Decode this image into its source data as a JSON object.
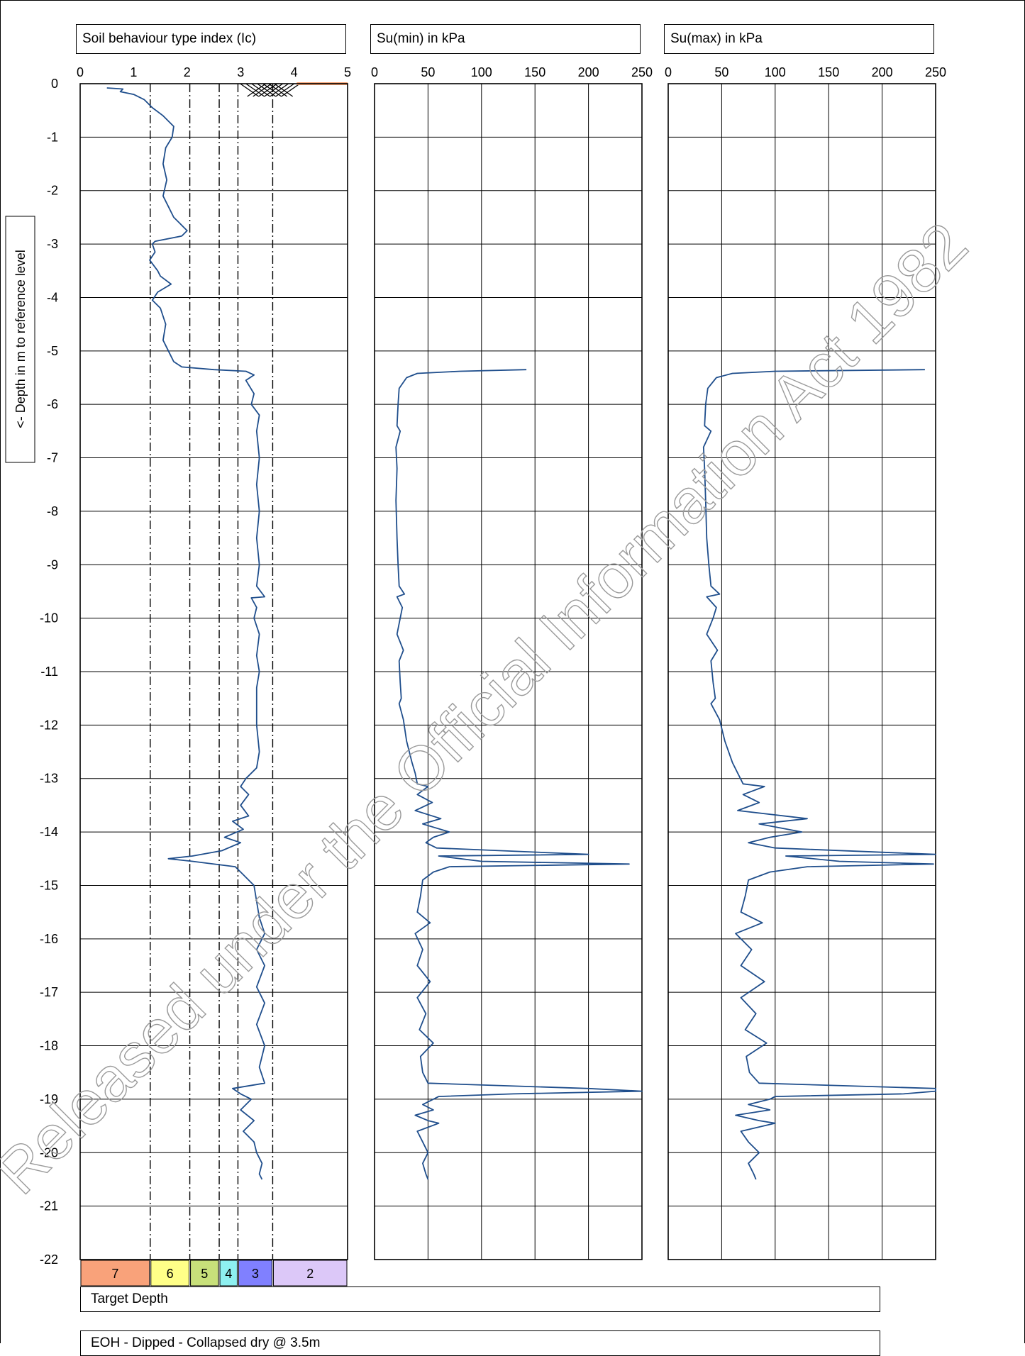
{
  "chart_data": [
    {
      "type": "line",
      "title": "Soil behaviour type index (Ic)",
      "ylabel": "<- Depth in m to reference level",
      "xlim": [
        0,
        5
      ],
      "ylim": [
        -22,
        0
      ],
      "x_ticks": [
        "0",
        "1",
        "2",
        "3",
        "4",
        "5"
      ],
      "y_ticks": [
        "0",
        "-1",
        "-2",
        "-3",
        "-4",
        "-5",
        "-6",
        "-7",
        "-8",
        "-9",
        "-10",
        "-11",
        "-12",
        "-13",
        "-14",
        "-15",
        "-16",
        "-17",
        "-18",
        "-19",
        "-20",
        "-21",
        "-22"
      ],
      "zone_boundaries": [
        1.31,
        2.05,
        2.6,
        2.95,
        3.6
      ],
      "zones": [
        {
          "label": "7",
          "from": 0,
          "to": 1.31,
          "color": "#f9a27a"
        },
        {
          "label": "6",
          "from": 1.31,
          "to": 2.05,
          "color": "#ffff88"
        },
        {
          "label": "5",
          "from": 2.05,
          "to": 2.6,
          "color": "#c8e07a"
        },
        {
          "label": "4",
          "from": 2.6,
          "to": 2.95,
          "color": "#8ef0f0"
        },
        {
          "label": "3",
          "from": 2.95,
          "to": 3.6,
          "color": "#8080ff"
        },
        {
          "label": "2",
          "from": 3.6,
          "to": 5,
          "color": "#dcc8f8"
        }
      ],
      "series": [
        {
          "color": "#1f4e8c",
          "points": [
            [
              0.5,
              -0.08
            ],
            [
              0.8,
              -0.1
            ],
            [
              0.75,
              -0.15
            ],
            [
              1.0,
              -0.2
            ],
            [
              1.2,
              -0.3
            ],
            [
              1.35,
              -0.45
            ],
            [
              1.55,
              -0.6
            ],
            [
              1.75,
              -0.8
            ],
            [
              1.72,
              -1.0
            ],
            [
              1.6,
              -1.2
            ],
            [
              1.55,
              -1.5
            ],
            [
              1.62,
              -1.8
            ],
            [
              1.55,
              -2.1
            ],
            [
              1.65,
              -2.3
            ],
            [
              1.75,
              -2.5
            ],
            [
              1.85,
              -2.6
            ],
            [
              2.0,
              -2.75
            ],
            [
              1.9,
              -2.85
            ],
            [
              1.4,
              -2.95
            ],
            [
              1.35,
              -3.0
            ],
            [
              1.4,
              -3.15
            ],
            [
              1.3,
              -3.3
            ],
            [
              1.45,
              -3.5
            ],
            [
              1.5,
              -3.6
            ],
            [
              1.7,
              -3.75
            ],
            [
              1.45,
              -3.9
            ],
            [
              1.35,
              -4.05
            ],
            [
              1.5,
              -4.2
            ],
            [
              1.6,
              -4.5
            ],
            [
              1.55,
              -4.8
            ],
            [
              1.65,
              -5.0
            ],
            [
              1.75,
              -5.2
            ],
            [
              1.9,
              -5.3
            ],
            [
              2.5,
              -5.35
            ],
            [
              3.1,
              -5.38
            ],
            [
              3.25,
              -5.45
            ],
            [
              3.1,
              -5.55
            ],
            [
              3.25,
              -5.8
            ],
            [
              3.2,
              -6.0
            ],
            [
              3.35,
              -6.2
            ],
            [
              3.3,
              -6.5
            ],
            [
              3.35,
              -7.0
            ],
            [
              3.3,
              -7.5
            ],
            [
              3.35,
              -8.0
            ],
            [
              3.3,
              -8.5
            ],
            [
              3.35,
              -9.0
            ],
            [
              3.3,
              -9.4
            ],
            [
              3.45,
              -9.6
            ],
            [
              3.2,
              -9.62
            ],
            [
              3.3,
              -9.8
            ],
            [
              3.25,
              -10.0
            ],
            [
              3.35,
              -10.3
            ],
            [
              3.3,
              -10.7
            ],
            [
              3.35,
              -11.0
            ],
            [
              3.3,
              -11.3
            ],
            [
              3.3,
              -11.6
            ],
            [
              3.3,
              -12.0
            ],
            [
              3.35,
              -12.5
            ],
            [
              3.3,
              -12.8
            ],
            [
              3.1,
              -13.0
            ],
            [
              3.0,
              -13.15
            ],
            [
              3.15,
              -13.3
            ],
            [
              3.0,
              -13.5
            ],
            [
              3.15,
              -13.7
            ],
            [
              2.85,
              -13.8
            ],
            [
              3.05,
              -13.95
            ],
            [
              2.7,
              -14.1
            ],
            [
              3.0,
              -14.2
            ],
            [
              2.65,
              -14.35
            ],
            [
              2.1,
              -14.45
            ],
            [
              1.65,
              -14.5
            ],
            [
              2.1,
              -14.55
            ],
            [
              2.9,
              -14.65
            ],
            [
              3.05,
              -14.8
            ],
            [
              3.25,
              -15.0
            ],
            [
              3.3,
              -15.3
            ],
            [
              3.35,
              -15.6
            ],
            [
              3.45,
              -15.9
            ],
            [
              3.3,
              -16.2
            ],
            [
              3.45,
              -16.5
            ],
            [
              3.3,
              -16.9
            ],
            [
              3.45,
              -17.2
            ],
            [
              3.3,
              -17.6
            ],
            [
              3.45,
              -18.0
            ],
            [
              3.35,
              -18.4
            ],
            [
              3.45,
              -18.7
            ],
            [
              2.85,
              -18.8
            ],
            [
              3.0,
              -18.9
            ],
            [
              3.2,
              -19.0
            ],
            [
              3.0,
              -19.2
            ],
            [
              3.25,
              -19.4
            ],
            [
              3.05,
              -19.6
            ],
            [
              3.25,
              -19.8
            ],
            [
              3.3,
              -20.0
            ],
            [
              3.4,
              -20.2
            ],
            [
              3.35,
              -20.4
            ],
            [
              3.4,
              -20.5
            ]
          ]
        }
      ]
    },
    {
      "type": "line",
      "title": "Su(min) in kPa",
      "xlim": [
        0,
        250
      ],
      "ylim": [
        -22,
        0
      ],
      "x_ticks": [
        "0",
        "50",
        "100",
        "150",
        "200",
        "250"
      ],
      "series": [
        {
          "color": "#1f4e8c",
          "points": [
            [
              142,
              -5.35
            ],
            [
              80,
              -5.38
            ],
            [
              40,
              -5.42
            ],
            [
              30,
              -5.5
            ],
            [
              23,
              -5.7
            ],
            [
              22,
              -6.0
            ],
            [
              21,
              -6.4
            ],
            [
              24,
              -6.5
            ],
            [
              20,
              -6.8
            ],
            [
              21,
              -7.2
            ],
            [
              20,
              -7.8
            ],
            [
              21,
              -8.5
            ],
            [
              22,
              -9.0
            ],
            [
              23,
              -9.4
            ],
            [
              28,
              -9.55
            ],
            [
              21,
              -9.6
            ],
            [
              26,
              -9.8
            ],
            [
              24,
              -10.0
            ],
            [
              21,
              -10.3
            ],
            [
              27,
              -10.6
            ],
            [
              23,
              -10.8
            ],
            [
              24,
              -11.2
            ],
            [
              25,
              -11.5
            ],
            [
              23,
              -11.6
            ],
            [
              27,
              -11.9
            ],
            [
              30,
              -12.3
            ],
            [
              35,
              -12.7
            ],
            [
              38,
              -12.9
            ],
            [
              40,
              -13.1
            ],
            [
              50,
              -13.15
            ],
            [
              40,
              -13.3
            ],
            [
              54,
              -13.45
            ],
            [
              38,
              -13.6
            ],
            [
              62,
              -13.75
            ],
            [
              45,
              -13.85
            ],
            [
              70,
              -14.0
            ],
            [
              55,
              -14.1
            ],
            [
              48,
              -14.2
            ],
            [
              58,
              -14.3
            ],
            [
              200,
              -14.42
            ],
            [
              60,
              -14.45
            ],
            [
              100,
              -14.55
            ],
            [
              238,
              -14.6
            ],
            [
              70,
              -14.65
            ],
            [
              55,
              -14.75
            ],
            [
              45,
              -14.9
            ],
            [
              43,
              -15.2
            ],
            [
              40,
              -15.5
            ],
            [
              52,
              -15.7
            ],
            [
              38,
              -15.9
            ],
            [
              45,
              -16.2
            ],
            [
              40,
              -16.5
            ],
            [
              52,
              -16.8
            ],
            [
              40,
              -17.1
            ],
            [
              48,
              -17.4
            ],
            [
              42,
              -17.7
            ],
            [
              55,
              -17.95
            ],
            [
              43,
              -18.2
            ],
            [
              45,
              -18.5
            ],
            [
              50,
              -18.7
            ],
            [
              200,
              -18.8
            ],
            [
              250,
              -18.85
            ],
            [
              130,
              -18.9
            ],
            [
              60,
              -18.95
            ],
            [
              55,
              -19.0
            ],
            [
              45,
              -19.1
            ],
            [
              55,
              -19.2
            ],
            [
              38,
              -19.3
            ],
            [
              50,
              -19.4
            ],
            [
              60,
              -19.45
            ],
            [
              40,
              -19.6
            ],
            [
              45,
              -19.8
            ],
            [
              50,
              -20.0
            ],
            [
              45,
              -20.2
            ],
            [
              48,
              -20.4
            ],
            [
              50,
              -20.5
            ]
          ]
        }
      ]
    },
    {
      "type": "line",
      "title": "Su(max) in kPa",
      "xlim": [
        0,
        250
      ],
      "ylim": [
        -22,
        0
      ],
      "x_ticks": [
        "0",
        "50",
        "100",
        "150",
        "200",
        "250"
      ],
      "series": [
        {
          "color": "#1f4e8c",
          "points": [
            [
              240,
              -5.35
            ],
            [
              100,
              -5.38
            ],
            [
              60,
              -5.42
            ],
            [
              45,
              -5.5
            ],
            [
              37,
              -5.7
            ],
            [
              35,
              -6.0
            ],
            [
              34,
              -6.4
            ],
            [
              40,
              -6.5
            ],
            [
              33,
              -6.8
            ],
            [
              34,
              -7.2
            ],
            [
              35,
              -7.8
            ],
            [
              36,
              -8.5
            ],
            [
              38,
              -9.0
            ],
            [
              40,
              -9.4
            ],
            [
              48,
              -9.55
            ],
            [
              36,
              -9.6
            ],
            [
              45,
              -9.8
            ],
            [
              42,
              -10.0
            ],
            [
              36,
              -10.3
            ],
            [
              46,
              -10.6
            ],
            [
              40,
              -10.8
            ],
            [
              42,
              -11.2
            ],
            [
              44,
              -11.5
            ],
            [
              40,
              -11.6
            ],
            [
              48,
              -11.9
            ],
            [
              53,
              -12.3
            ],
            [
              60,
              -12.7
            ],
            [
              65,
              -12.9
            ],
            [
              70,
              -13.1
            ],
            [
              90,
              -13.15
            ],
            [
              70,
              -13.3
            ],
            [
              85,
              -13.45
            ],
            [
              65,
              -13.6
            ],
            [
              130,
              -13.75
            ],
            [
              85,
              -13.85
            ],
            [
              125,
              -14.0
            ],
            [
              95,
              -14.1
            ],
            [
              75,
              -14.2
            ],
            [
              100,
              -14.3
            ],
            [
              250,
              -14.42
            ],
            [
              110,
              -14.45
            ],
            [
              160,
              -14.55
            ],
            [
              248,
              -14.6
            ],
            [
              130,
              -14.65
            ],
            [
              95,
              -14.75
            ],
            [
              75,
              -14.9
            ],
            [
              72,
              -15.2
            ],
            [
              68,
              -15.5
            ],
            [
              88,
              -15.7
            ],
            [
              63,
              -15.9
            ],
            [
              78,
              -16.2
            ],
            [
              68,
              -16.5
            ],
            [
              90,
              -16.8
            ],
            [
              68,
              -17.1
            ],
            [
              82,
              -17.4
            ],
            [
              72,
              -17.7
            ],
            [
              92,
              -17.95
            ],
            [
              73,
              -18.2
            ],
            [
              76,
              -18.5
            ],
            [
              85,
              -18.7
            ],
            [
              250,
              -18.8
            ],
            [
              250,
              -18.85
            ],
            [
              220,
              -18.9
            ],
            [
              100,
              -18.95
            ],
            [
              95,
              -19.0
            ],
            [
              75,
              -19.1
            ],
            [
              95,
              -19.2
            ],
            [
              63,
              -19.3
            ],
            [
              85,
              -19.4
            ],
            [
              100,
              -19.45
            ],
            [
              68,
              -19.6
            ],
            [
              75,
              -19.8
            ],
            [
              85,
              -20.0
            ],
            [
              75,
              -20.2
            ],
            [
              80,
              -20.4
            ],
            [
              82,
              -20.5
            ]
          ]
        }
      ]
    }
  ],
  "notes": {
    "target_depth": "Target Depth",
    "eoh": "EOH - Dipped - Collapsed dry @ 3.5m"
  },
  "watermark": "Released under the Official Information Act 1982"
}
